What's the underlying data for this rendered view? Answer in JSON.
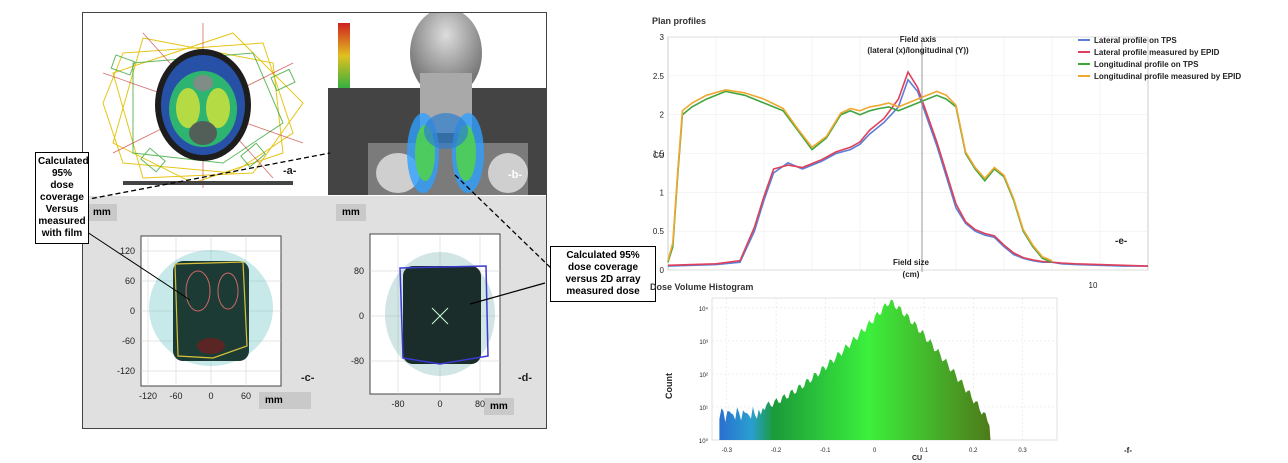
{
  "panels": {
    "a_label": "-a-",
    "b_label": "-b-",
    "c_label": "-c-",
    "d_label": "-d-",
    "e_label": "-e-",
    "f_label": "-f-"
  },
  "callouts": {
    "left": [
      "Calculated",
      "95%",
      "dose",
      "coverage",
      "Versus",
      "measured",
      "with film"
    ],
    "right": [
      "Calculated 95%",
      "dose coverage",
      "versus 2D array",
      "measured dose"
    ]
  },
  "panel_c": {
    "unit_top": "mm",
    "unit_bottom": "mm",
    "y_ticks": [
      "120",
      "60",
      "0",
      "-60",
      "-120"
    ],
    "x_ticks": [
      "-120",
      "-60",
      "0",
      "60",
      "120"
    ]
  },
  "panel_d": {
    "unit_top": "mm",
    "unit_bottom": "mm",
    "y_ticks": [
      "80",
      "0",
      "-80"
    ],
    "x_ticks": [
      "-80",
      "0",
      "80"
    ]
  },
  "profiles": {
    "section_title": "Plan profiles",
    "field_axis_label_1": "Field axis",
    "field_axis_label_2": "(lateral (x)/longitudinal (Y))",
    "field_size_label_1": "Field size",
    "field_size_label_2": "(cm)",
    "y_axis_label": "CU",
    "x_tick_right": "10"
  },
  "dvh": {
    "section_title": "Dose Volume Histogram",
    "y_axis_label": "Count",
    "x_axis_label": "CU"
  },
  "colors": {
    "lateral_tps": "#5b7fd6",
    "lateral_epid": "#e0405a",
    "longitudinal_tps": "#3fa53f",
    "longitudinal_epid": "#f0a830"
  },
  "chart_data": [
    {
      "type": "line",
      "title": "Plan profiles",
      "ylabel": "CU",
      "ylim": [
        0,
        3
      ],
      "y_ticks": [
        0,
        0.5,
        1,
        1.5,
        2,
        2.5,
        3
      ],
      "x_tick_labels": [
        "10"
      ],
      "grid": true,
      "legend_position": "top-right",
      "series": [
        {
          "name": "Lateral profile on TPS",
          "color": "#5b7fd6",
          "x": [
            0,
            5,
            10,
            15,
            18,
            20,
            22,
            25,
            28,
            32,
            35,
            38,
            40,
            42,
            45,
            48,
            50,
            52,
            54,
            56,
            58,
            60,
            62,
            64,
            66,
            68,
            70,
            72,
            74,
            76,
            78,
            80,
            82,
            85,
            90,
            95,
            100
          ],
          "y": [
            0.05,
            0.06,
            0.07,
            0.1,
            0.5,
            0.9,
            1.25,
            1.38,
            1.3,
            1.4,
            1.5,
            1.55,
            1.62,
            1.75,
            1.9,
            2.1,
            2.45,
            2.3,
            1.95,
            1.6,
            1.2,
            0.8,
            0.6,
            0.5,
            0.45,
            0.42,
            0.3,
            0.2,
            0.15,
            0.12,
            0.1,
            0.1,
            0.08,
            0.07,
            0.06,
            0.05,
            0.05
          ]
        },
        {
          "name": "Lateral profile measured by EPID",
          "color": "#e0405a",
          "x": [
            0,
            5,
            10,
            15,
            18,
            20,
            22,
            25,
            28,
            32,
            35,
            38,
            40,
            42,
            45,
            48,
            50,
            52,
            54,
            56,
            58,
            60,
            62,
            64,
            66,
            68,
            70,
            72,
            74,
            76,
            78,
            80,
            82,
            85,
            90,
            95,
            100
          ],
          "y": [
            0.06,
            0.07,
            0.08,
            0.12,
            0.55,
            0.95,
            1.3,
            1.35,
            1.32,
            1.42,
            1.52,
            1.58,
            1.65,
            1.8,
            1.95,
            2.2,
            2.55,
            2.35,
            2.0,
            1.65,
            1.25,
            0.85,
            0.62,
            0.52,
            0.47,
            0.44,
            0.32,
            0.22,
            0.16,
            0.13,
            0.11,
            0.1,
            0.09,
            0.08,
            0.07,
            0.06,
            0.05
          ]
        },
        {
          "name": "Longitudinal profile on TPS",
          "color": "#3fa53f",
          "x": [
            0,
            1,
            2,
            3,
            5,
            8,
            12,
            16,
            20,
            24,
            27,
            30,
            33,
            36,
            38,
            40,
            42,
            44,
            46,
            48,
            50,
            52,
            54,
            56,
            58,
            60,
            62,
            64,
            66,
            68,
            70,
            72,
            74,
            76,
            78,
            80
          ],
          "y": [
            0.1,
            0.3,
            1.2,
            2.0,
            2.1,
            2.2,
            2.3,
            2.25,
            2.15,
            2.05,
            1.8,
            1.55,
            1.7,
            2.0,
            2.05,
            2.0,
            2.05,
            2.08,
            2.1,
            2.05,
            2.1,
            2.15,
            2.2,
            2.25,
            2.2,
            2.1,
            1.5,
            1.3,
            1.15,
            1.3,
            1.2,
            0.9,
            0.5,
            0.3,
            0.15,
            0.1
          ]
        },
        {
          "name": "Longitudinal profile measured by EPID",
          "color": "#f0a830",
          "x": [
            0,
            1,
            2,
            3,
            5,
            8,
            12,
            16,
            20,
            24,
            27,
            30,
            33,
            36,
            38,
            40,
            42,
            44,
            46,
            48,
            50,
            52,
            54,
            56,
            58,
            60,
            62,
            64,
            66,
            68,
            70,
            72,
            74,
            76,
            78,
            80
          ],
          "y": [
            0.12,
            0.35,
            1.25,
            2.05,
            2.15,
            2.25,
            2.32,
            2.28,
            2.2,
            2.08,
            1.82,
            1.58,
            1.72,
            2.02,
            2.08,
            2.05,
            2.1,
            2.12,
            2.15,
            2.1,
            2.15,
            2.2,
            2.25,
            2.3,
            2.25,
            2.12,
            1.52,
            1.32,
            1.18,
            1.32,
            1.22,
            0.92,
            0.52,
            0.32,
            0.17,
            0.12
          ]
        }
      ]
    },
    {
      "type": "bar",
      "title": "Dose Volume Histogram",
      "xlabel": "CU",
      "ylabel": "Count",
      "xlim": [
        -0.33,
        0.37
      ],
      "x_ticks": [
        -0.3,
        -0.2,
        -0.1,
        0,
        0.1,
        0.2,
        0.3
      ],
      "y_scale": "log",
      "y_tick_labels": [
        "10⁰",
        "10¹",
        "10²",
        "10³",
        "10⁴"
      ],
      "grid": true
    }
  ]
}
